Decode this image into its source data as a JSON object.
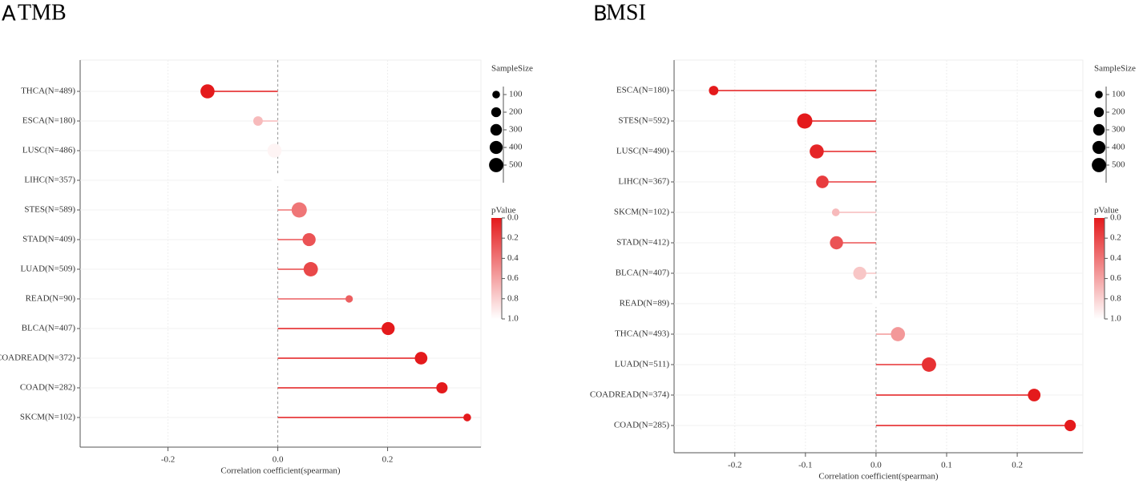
{
  "chart_data": [
    {
      "type": "lollipop",
      "panel": "A",
      "title": "TMB",
      "x_label": "Correlation coefficient(spearman)",
      "categories": [
        "THCA(N=489)",
        "ESCA(N=180)",
        "LUSC(N=486)",
        "LIHC(N=357)",
        "STES(N=589)",
        "STAD(N=409)",
        "LUAD(N=509)",
        "READ(N=90)",
        "BLCA(N=407)",
        "COADREAD(N=372)",
        "COAD(N=282)",
        "SKCM(N=102)"
      ],
      "values": [
        -0.128,
        -0.036,
        -0.006,
        0.0,
        0.039,
        0.057,
        0.06,
        0.13,
        0.201,
        0.261,
        0.299,
        0.345
      ],
      "p_values": [
        0.0,
        0.7,
        0.95,
        1.0,
        0.4,
        0.25,
        0.2,
        0.3,
        0.0,
        0.0,
        0.0,
        0.0
      ],
      "sizes": [
        489,
        180,
        486,
        357,
        589,
        409,
        509,
        90,
        407,
        372,
        282,
        102
      ],
      "xlim": [
        -0.36,
        0.37
      ],
      "xticks": [
        -0.2,
        {
          "value": 0,
          "label": "0.0"
        },
        0.2
      ],
      "color": "#e41a1c",
      "grid": true,
      "size_legend": {
        "title": "SampleSize",
        "ticks": [
          100,
          200,
          300,
          400,
          500
        ]
      },
      "color_legend": {
        "title": "pValue",
        "ticks": [
          {
            "value": 0,
            "label": "0.0"
          },
          0.2,
          0.4,
          0.6,
          0.8,
          {
            "value": 1,
            "label": "1.0"
          }
        ]
      }
    },
    {
      "type": "lollipop",
      "panel": "B",
      "title": "MSI",
      "x_label": "Correlation coefficient(spearman)",
      "categories": [
        "ESCA(N=180)",
        "STES(N=592)",
        "LUSC(N=490)",
        "LIHC(N=367)",
        "SKCM(N=102)",
        "STAD(N=412)",
        "BLCA(N=407)",
        "READ(N=89)",
        "THCA(N=493)",
        "LUAD(N=511)",
        "COADREAD(N=374)",
        "COAD(N=285)"
      ],
      "values": [
        -0.23,
        -0.101,
        -0.084,
        -0.076,
        -0.057,
        -0.056,
        -0.023,
        0.0,
        0.031,
        0.075,
        0.224,
        0.275
      ],
      "p_values": [
        0.0,
        0.0,
        0.05,
        0.15,
        0.7,
        0.25,
        0.75,
        1.0,
        0.55,
        0.1,
        0.0,
        0.0
      ],
      "sizes": [
        180,
        592,
        490,
        367,
        102,
        412,
        407,
        89,
        493,
        511,
        374,
        285
      ],
      "xlim": [
        -0.286,
        0.293
      ],
      "xticks": [
        -0.2,
        -0.1,
        {
          "value": 0,
          "label": "0.0"
        },
        0.1,
        0.2
      ],
      "color": "#e41a1c",
      "grid": true,
      "size_legend": {
        "title": "SampleSize",
        "ticks": [
          100,
          200,
          300,
          400,
          500
        ]
      },
      "color_legend": {
        "title": "pValue",
        "ticks": [
          {
            "value": 0,
            "label": "0.0"
          },
          0.2,
          0.4,
          0.6,
          0.8,
          {
            "value": 1,
            "label": "1.0"
          }
        ]
      }
    }
  ]
}
